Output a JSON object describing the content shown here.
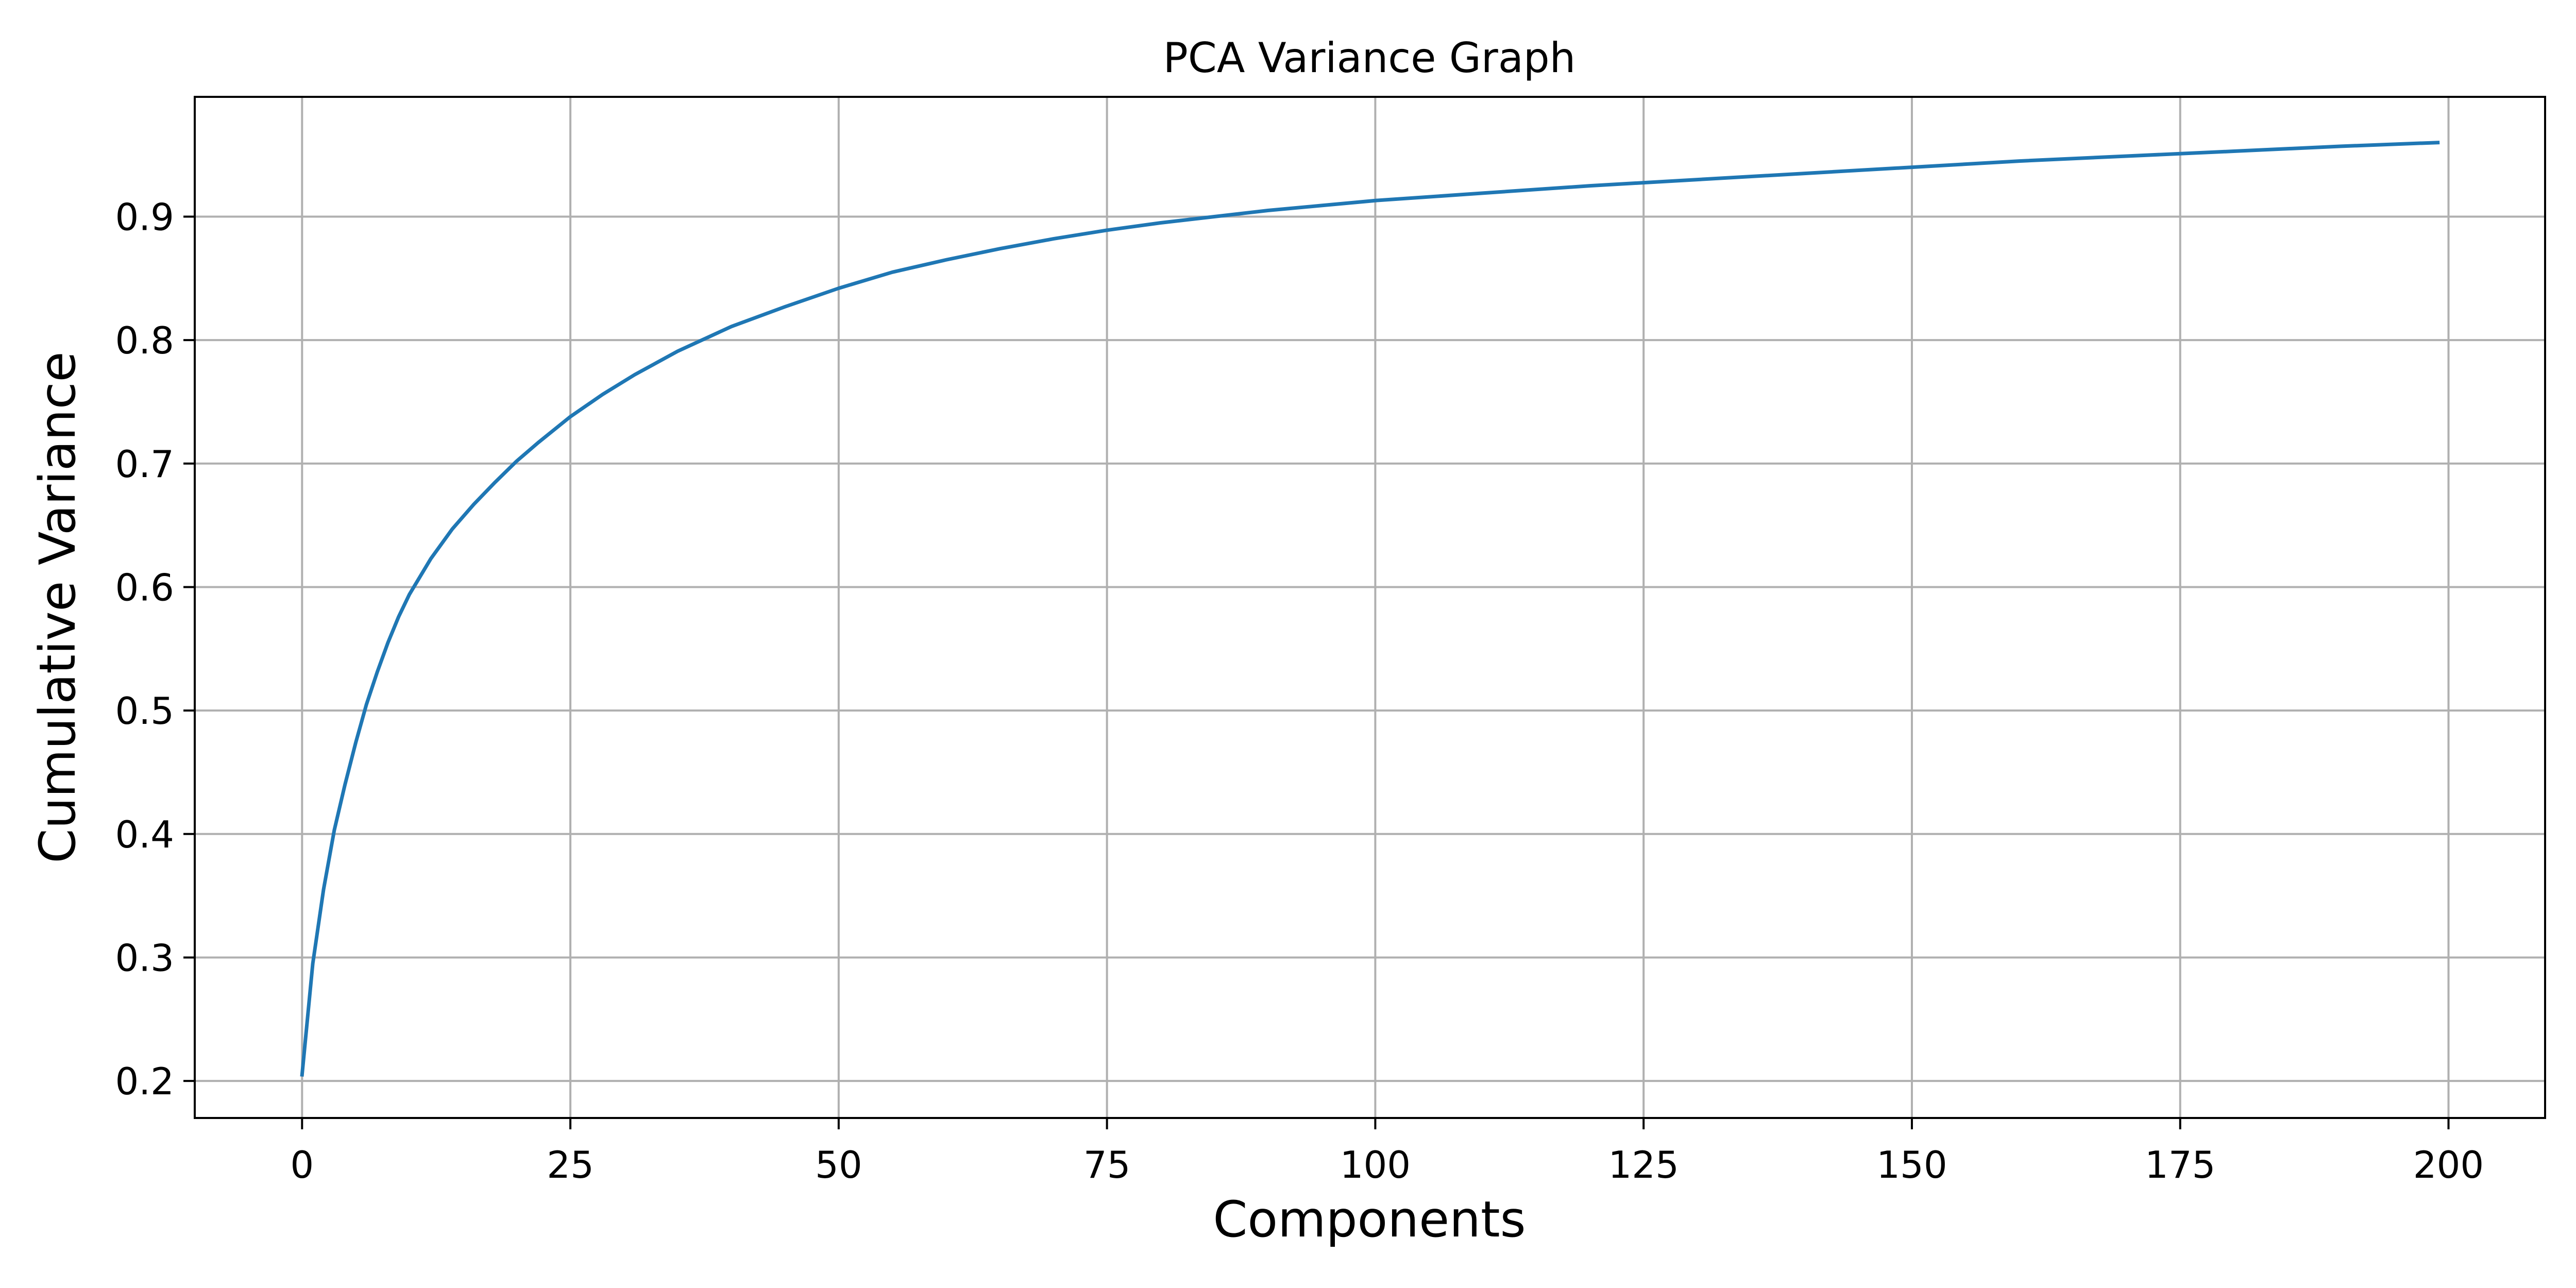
{
  "chart_data": {
    "type": "line",
    "title": "PCA Variance Graph",
    "xlabel": "Components",
    "ylabel": "Cumulative Variance",
    "xlim": [
      -10,
      209
    ],
    "ylim": [
      0.17,
      0.997
    ],
    "x_ticks": [
      0,
      25,
      50,
      75,
      100,
      125,
      150,
      175,
      200
    ],
    "x_tick_labels": [
      "0",
      "25",
      "50",
      "75",
      "100",
      "125",
      "150",
      "175",
      "200"
    ],
    "y_ticks": [
      0.2,
      0.3,
      0.4,
      0.5,
      0.6,
      0.7,
      0.8,
      0.9
    ],
    "y_tick_labels": [
      "0.2",
      "0.3",
      "0.4",
      "0.5",
      "0.6",
      "0.7",
      "0.8",
      "0.9"
    ],
    "grid": true,
    "legend": "none",
    "colors": {
      "line": "#1f77b4",
      "grid": "#b0b0b0",
      "axes": "#000000"
    },
    "series": [
      {
        "x": [
          0,
          1,
          2,
          3,
          4,
          5,
          6,
          7,
          8,
          9,
          10,
          12,
          14,
          16,
          18,
          20,
          22,
          25,
          28,
          31,
          35,
          40,
          45,
          50,
          55,
          60,
          65,
          70,
          75,
          80,
          85,
          90,
          95,
          100,
          110,
          120,
          130,
          140,
          150,
          160,
          170,
          180,
          190,
          199
        ],
        "y": [
          0.205,
          0.295,
          0.355,
          0.403,
          0.44,
          0.474,
          0.505,
          0.531,
          0.555,
          0.576,
          0.594,
          0.623,
          0.647,
          0.667,
          0.685,
          0.702,
          0.717,
          0.738,
          0.756,
          0.772,
          0.791,
          0.811,
          0.827,
          0.842,
          0.855,
          0.865,
          0.874,
          0.882,
          0.889,
          0.895,
          0.9,
          0.905,
          0.909,
          0.913,
          0.919,
          0.925,
          0.93,
          0.935,
          0.94,
          0.945,
          0.949,
          0.953,
          0.957,
          0.96
        ]
      }
    ]
  }
}
